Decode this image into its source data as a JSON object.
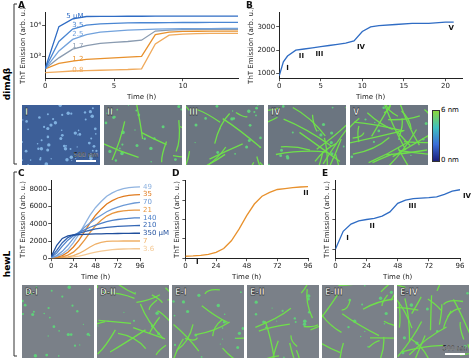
{
  "figure": {
    "sections": [
      "dimAβ",
      "hewL"
    ],
    "images": [
      {
        "label": "I",
        "scale_bar": "500 nm"
      },
      {
        "label": "II"
      },
      {
        "label": "III"
      },
      {
        "label": "IV"
      },
      {
        "label": "V"
      },
      {
        "label": "D-I"
      },
      {
        "label": "D-II"
      },
      {
        "label": "E-I"
      },
      {
        "label": "E-II"
      },
      {
        "label": "E-III"
      },
      {
        "label": "E-IV",
        "scale_bar": "500 nm"
      }
    ],
    "color_bar": {
      "lim": [
        0,
        6
      ],
      "ticks": [
        {
          "value": 0,
          "label": "0 nm"
        },
        {
          "value": 6,
          "label": "6 nm"
        }
      ]
    }
  },
  "chart_data": [
    {
      "type": "line",
      "title": "A",
      "xlabel": "Time (h)",
      "ylabel": "ThT Emission (arb. u.)",
      "log": "y",
      "grid": false,
      "x": [
        0,
        1,
        2,
        3,
        4,
        5,
        6,
        7,
        8,
        9,
        10,
        11,
        12,
        13,
        14
      ],
      "xlim": [
        0,
        14
      ],
      "xticks": [
        0,
        5,
        10
      ],
      "ylim": [
        200,
        25000
      ],
      "yticks": [
        {
          "value": 1000,
          "label": "10³"
        },
        {
          "value": 10000,
          "label": "10⁴"
        }
      ],
      "series": [
        {
          "name": "5 µM",
          "color": "#2f6cc4",
          "values": [
            400,
            9000,
            16000,
            19000,
            19200,
            19300,
            19400,
            19400,
            19500,
            19500,
            19600,
            19600,
            19600,
            19700,
            19700
          ]
        },
        {
          "name": "3.5",
          "color": "#4a86d2",
          "values": [
            400,
            3000,
            7500,
            10000,
            11000,
            11500,
            11800,
            12000,
            12000,
            12100,
            12200,
            12200,
            12300,
            12300,
            12300
          ]
        },
        {
          "name": "2.5",
          "color": "#72a2dc",
          "values": [
            400,
            1500,
            3500,
            5000,
            6000,
            6500,
            7000,
            7200,
            7500,
            7600,
            7700,
            7800,
            7800,
            7900,
            7900
          ]
        },
        {
          "name": "1.7",
          "color": "#8a9bb0",
          "values": [
            400,
            900,
            1700,
            2200,
            2600,
            2800,
            3000,
            3300,
            6500,
            7000,
            7200,
            7300,
            7300,
            7400,
            7400
          ]
        },
        {
          "name": "1.2",
          "color": "#e8912d",
          "values": [
            400,
            600,
            700,
            800,
            850,
            900,
            950,
            1000,
            5000,
            6000,
            6300,
            6400,
            6500,
            6500,
            6500
          ]
        },
        {
          "name": "0.8",
          "color": "#f0aa5c",
          "values": [
            300,
            320,
            340,
            350,
            360,
            370,
            380,
            400,
            2500,
            4800,
            5200,
            5400,
            5500,
            5500,
            5500
          ]
        }
      ]
    },
    {
      "type": "line",
      "title": "B",
      "xlabel": "Time (h)",
      "ylabel": "ThT Emission (arb. u.)",
      "grid": false,
      "x": [
        0,
        0.5,
        1,
        2,
        3,
        4,
        5,
        6,
        7,
        8,
        9,
        10,
        11,
        12,
        14,
        16,
        18,
        20,
        21
      ],
      "values": [
        900,
        1500,
        1750,
        2000,
        2050,
        2100,
        2150,
        2200,
        2250,
        2300,
        2400,
        2800,
        3000,
        3050,
        3100,
        3150,
        3150,
        3200,
        3200
      ],
      "color": "#2f6cc4",
      "xlim": [
        0,
        22
      ],
      "xticks": [
        0,
        5,
        10,
        15,
        20
      ],
      "ylim": [
        800,
        3600
      ],
      "yticks": [
        1000,
        2000,
        3000
      ],
      "annotations": [
        {
          "text": "I",
          "x": 0.5,
          "y": 1500
        },
        {
          "text": "II",
          "x": 2,
          "y": 2000
        },
        {
          "text": "III",
          "x": 4,
          "y": 2100
        },
        {
          "text": "IV",
          "x": 9,
          "y": 2400
        },
        {
          "text": "V",
          "x": 20,
          "y": 3200
        }
      ]
    },
    {
      "type": "line",
      "title": "C",
      "xlabel": "Time (h)",
      "ylabel": "ThT Emission (arb. u.)",
      "grid": false,
      "x": [
        0,
        6,
        12,
        18,
        24,
        30,
        36,
        42,
        48,
        54,
        60,
        66,
        72,
        78,
        84,
        90,
        96
      ],
      "xlim": [
        0,
        96
      ],
      "xticks": [
        0,
        24,
        48,
        72,
        96
      ],
      "ylim": [
        0,
        9000
      ],
      "yticks": [
        0,
        2000,
        4000,
        6000,
        8000
      ],
      "series": [
        {
          "name": "350 µM",
          "color": "#1f4e9c",
          "values": [
            200,
            1500,
            2300,
            2600,
            2700,
            2750,
            2780,
            2800,
            2820,
            2840,
            2850,
            2860,
            2870,
            2880,
            2890,
            2900,
            2900
          ]
        },
        {
          "name": "210",
          "color": "#3567b5",
          "values": [
            150,
            900,
            1800,
            2400,
            2700,
            2900,
            3100,
            3250,
            3400,
            3500,
            3580,
            3640,
            3690,
            3730,
            3760,
            3790,
            3800
          ]
        },
        {
          "name": "140",
          "color": "#4f82c9",
          "values": [
            100,
            600,
            1400,
            2100,
            2600,
            3000,
            3300,
            3600,
            3850,
            4050,
            4250,
            4400,
            4500,
            4580,
            4640,
            4680,
            4700
          ]
        },
        {
          "name": "70",
          "color": "#6d9ad6",
          "values": [
            80,
            300,
            800,
            1500,
            2300,
            3000,
            3600,
            4100,
            4600,
            5000,
            5400,
            5700,
            5950,
            6150,
            6300,
            6420,
            6500
          ]
        },
        {
          "name": "49",
          "color": "#8fb3e0",
          "values": [
            60,
            200,
            500,
            1000,
            1800,
            2800,
            3900,
            5000,
            5900,
            6600,
            7200,
            7600,
            7900,
            8100,
            8200,
            8260,
            8300
          ]
        },
        {
          "name": "35",
          "color": "#e07b1f",
          "values": [
            50,
            120,
            300,
            700,
            1300,
            2100,
            3100,
            4100,
            5000,
            5700,
            6300,
            6700,
            7000,
            7200,
            7300,
            7360,
            7400
          ]
        },
        {
          "name": "21",
          "color": "#e8963f",
          "values": [
            40,
            80,
            150,
            350,
            700,
            1300,
            2100,
            3000,
            3800,
            4400,
            4900,
            5200,
            5400,
            5500,
            5560,
            5590,
            5600
          ]
        },
        {
          "name": "7",
          "color": "#efb067",
          "values": [
            30,
            50,
            80,
            150,
            300,
            550,
            900,
            1300,
            1650,
            1850,
            1950,
            1980,
            1990,
            2000,
            2000,
            2000,
            2000
          ]
        },
        {
          "name": "3.6",
          "color": "#f4c893",
          "values": [
            20,
            30,
            50,
            80,
            150,
            250,
            400,
            550,
            700,
            820,
            920,
            990,
            1040,
            1070,
            1090,
            1100,
            1100
          ]
        }
      ]
    },
    {
      "type": "line",
      "title": "D",
      "xlabel": "Time (h)",
      "ylabel": "ThT Emission (arb. u.)",
      "grid": false,
      "tick_labels": "x",
      "x": [
        0,
        6,
        12,
        18,
        24,
        30,
        36,
        42,
        48,
        54,
        60,
        66,
        72,
        78,
        84,
        90,
        96
      ],
      "values": [
        100,
        120,
        150,
        200,
        300,
        500,
        900,
        1500,
        2200,
        2800,
        3200,
        3400,
        3550,
        3600,
        3650,
        3680,
        3700
      ],
      "color": "#e8912d",
      "xlim": [
        0,
        96
      ],
      "xticks": [
        0,
        24,
        48,
        72,
        96
      ],
      "ylim": [
        0,
        4000
      ],
      "yticks": [
        0,
        1000,
        2000,
        3000,
        4000
      ],
      "annotations": [
        {
          "text": "I",
          "x": 6,
          "y": 120
        },
        {
          "text": "II",
          "x": 90,
          "y": 3680
        }
      ]
    },
    {
      "type": "line",
      "title": "E",
      "xlabel": "Time (h)",
      "ylabel": "ThT Emission (arb. u.)",
      "log": "y",
      "grid": false,
      "tick_labels": "x",
      "x": [
        0,
        6,
        12,
        18,
        24,
        30,
        36,
        42,
        48,
        54,
        60,
        66,
        72,
        78,
        84,
        90,
        96
      ],
      "values": [
        100,
        400,
        700,
        900,
        1000,
        1100,
        1300,
        1800,
        3500,
        4500,
        5000,
        5200,
        5400,
        5800,
        7000,
        9000,
        10000
      ],
      "color": "#2f6cc4",
      "xlim": [
        0,
        96
      ],
      "xticks": [
        0,
        24,
        48,
        72,
        96
      ],
      "ylim": [
        50,
        20000
      ],
      "yticks": [
        100,
        1000,
        10000
      ],
      "annotations": [
        {
          "text": "I",
          "x": 6,
          "y": 400
        },
        {
          "text": "II",
          "x": 24,
          "y": 1000
        },
        {
          "text": "III",
          "x": 54,
          "y": 4500
        },
        {
          "text": "IV",
          "x": 96,
          "y": 10000
        }
      ]
    }
  ]
}
